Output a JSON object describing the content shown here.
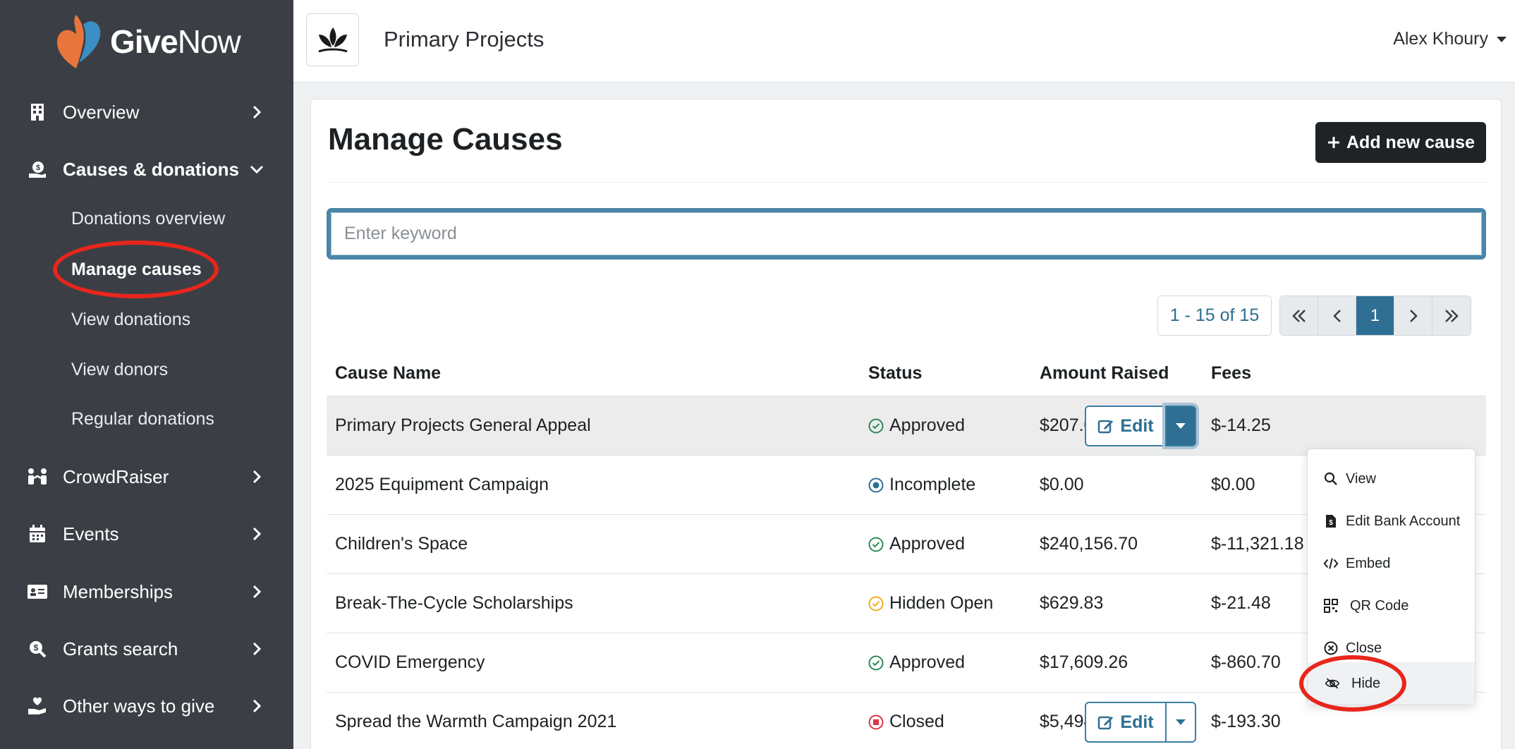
{
  "brand": {
    "logo_bold": "Give",
    "logo_light": "Now",
    "colors": {
      "orange": "#e8763c",
      "blue": "#3b8fc4",
      "sidebar": "#3b3f45",
      "accent": "#2e6f93",
      "annotation": "#e8261c"
    }
  },
  "sidebar": {
    "items": [
      {
        "label": "Overview",
        "icon": "building-icon",
        "chevron": "right"
      },
      {
        "label": "Causes & donations",
        "icon": "donation-icon",
        "chevron": "down",
        "active": true
      },
      {
        "label": "CrowdRaiser",
        "icon": "people-icon",
        "chevron": "right"
      },
      {
        "label": "Events",
        "icon": "calendar-icon",
        "chevron": "right"
      },
      {
        "label": "Memberships",
        "icon": "id-card-icon",
        "chevron": "right"
      },
      {
        "label": "Grants search",
        "icon": "search-dollar-icon",
        "chevron": "right"
      },
      {
        "label": "Other ways to give",
        "icon": "hand-heart-icon",
        "chevron": "right"
      }
    ],
    "subitems": [
      {
        "label": "Donations overview"
      },
      {
        "label": "Manage causes",
        "active": true
      },
      {
        "label": "View donations"
      },
      {
        "label": "View donors"
      },
      {
        "label": "Regular donations"
      }
    ]
  },
  "topbar": {
    "org_name": "Primary Projects",
    "user_name": "Alex Khoury"
  },
  "main": {
    "title": "Manage Causes",
    "add_button": "Add new cause",
    "search_placeholder": "Enter keyword",
    "range": "1 - 15 of 15",
    "pager": {
      "first": "«",
      "prev": "‹",
      "current": "1",
      "next": "›",
      "last": "»"
    },
    "columns": [
      "Cause Name",
      "Status",
      "Amount Raised",
      "Fees"
    ],
    "edit_label": "Edit",
    "rows": [
      {
        "name": "Primary Projects General Appeal",
        "status": "Approved",
        "status_type": "approved",
        "amount": "$207.00",
        "fees": "$-14.25"
      },
      {
        "name": "2025 Equipment Campaign",
        "status": "Incomplete",
        "status_type": "incomplete",
        "amount": "$0.00",
        "fees": "$0.00"
      },
      {
        "name": "Children's Space",
        "status": "Approved",
        "status_type": "approved",
        "amount": "$240,156.70",
        "fees": "$-11,321.18"
      },
      {
        "name": "Break-The-Cycle Scholarships",
        "status": "Hidden Open",
        "status_type": "hidden",
        "amount": "$629.83",
        "fees": "$-21.48"
      },
      {
        "name": "COVID Emergency",
        "status": "Approved",
        "status_type": "approved",
        "amount": "$17,609.26",
        "fees": "$-860.70"
      },
      {
        "name": "Spread the Warmth Campaign 2021",
        "status": "Closed",
        "status_type": "closed",
        "amount": "$5,494.11",
        "fees": "$-193.30"
      }
    ],
    "status_colors": {
      "approved": "#2e8b57",
      "incomplete": "#2e6f93",
      "hidden": "#f0ad1e",
      "closed": "#dc3545"
    }
  },
  "dropdown": {
    "items": [
      {
        "label": "View",
        "icon": "magnifier-icon"
      },
      {
        "label": "Edit Bank Account",
        "icon": "file-dollar-icon"
      },
      {
        "label": "Embed",
        "icon": "code-icon"
      },
      {
        "label": "QR Code",
        "icon": "qr-code-icon"
      },
      {
        "label": "Close",
        "icon": "x-circle-icon"
      },
      {
        "label": "Hide",
        "icon": "eye-slash-icon"
      }
    ]
  }
}
